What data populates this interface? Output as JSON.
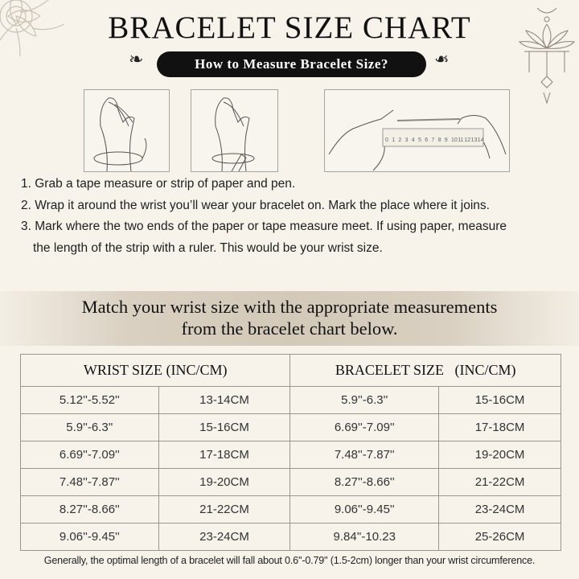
{
  "title": "BRACELET SIZE CHART",
  "subtitle_pill": "How to Measure Bracelet Size?",
  "ruler_labels": [
    "0",
    "1",
    "2",
    "3",
    "4",
    "5",
    "6",
    "7",
    "8",
    "9",
    "10",
    "11",
    "12",
    "13",
    "14"
  ],
  "instructions": [
    "1. Grab a tape measure or strip of paper and pen.",
    "2. Wrap it around the wrist you’ll wear your bracelet on. Mark the place where it joins.",
    "3. Mark where the two ends of the paper or tape measure meet. If using paper, measure",
    "the length of the strip with a ruler. This would be your wrist size."
  ],
  "banner": {
    "line1": "Match your wrist size with the appropriate measurements",
    "line2": "from the bracelet chart below."
  },
  "table": {
    "headers": [
      "WRIST SIZE (INC/CM)",
      "BRACELET SIZE   (INC/CM)"
    ],
    "rows": [
      [
        "5.12''-5.52''",
        "13-14CM",
        "5.9''-6.3''",
        "15-16CM"
      ],
      [
        "5.9''-6.3''",
        "15-16CM",
        "6.69''-7.09''",
        "17-18CM"
      ],
      [
        "6.69''-7.09''",
        "17-18CM",
        "7.48''-7.87''",
        "19-20CM"
      ],
      [
        "7.48''-7.87''",
        "19-20CM",
        "8.27''-8.66''",
        "21-22CM"
      ],
      [
        "8.27''-8.66''",
        "21-22CM",
        "9.06''-9.45''",
        "23-24CM"
      ],
      [
        "9.06''-9.45''",
        "23-24CM",
        "9.84''-10.23",
        "25-26CM"
      ]
    ]
  },
  "footer": "Generally, the optimal length of a bracelet will fall about 0.6''-0.79'' (1.5-2cm) longer than your wrist circumference.",
  "colors": {
    "background": "#f7f3ea",
    "pill": "#111111",
    "band": "#d3c9b9",
    "border": "#9a968f"
  }
}
